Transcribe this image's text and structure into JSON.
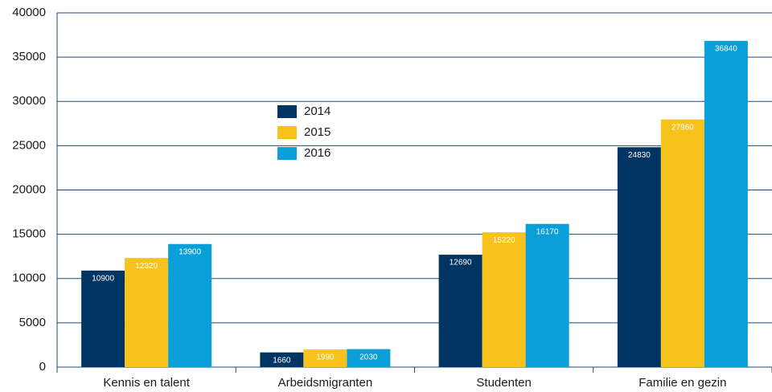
{
  "chart_data": {
    "type": "bar",
    "categories": [
      "Kennis en talent",
      "Arbeidsmigranten",
      "Studenten",
      "Familie en gezin"
    ],
    "series": [
      {
        "name": "2014",
        "color": "#003462",
        "values": [
          10900,
          1660,
          12690,
          24830
        ]
      },
      {
        "name": "2015",
        "color": "#f8c21c",
        "values": [
          12320,
          1990,
          15220,
          27960
        ]
      },
      {
        "name": "2016",
        "color": "#0a9fd8",
        "values": [
          13900,
          2030,
          16170,
          36840
        ]
      }
    ],
    "ylim": [
      0,
      40000
    ],
    "yticks": [
      0,
      5000,
      10000,
      15000,
      20000,
      25000,
      30000,
      35000,
      40000
    ],
    "grid": true,
    "legend": "upper-left"
  }
}
